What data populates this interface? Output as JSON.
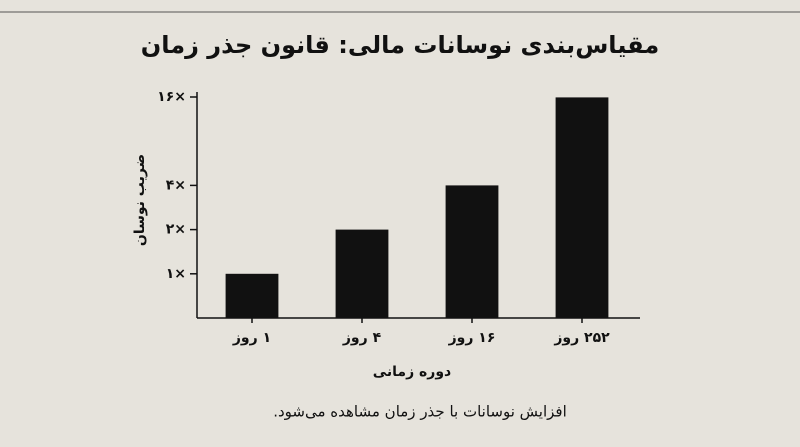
{
  "chart_data": {
    "type": "bar",
    "title": "مقیاس‌بندی نوسانات مالی: قانون جذر زمان",
    "x_label": "دوره زمانی",
    "y_label": "ضریب نوسان",
    "caption": "افزایش نوسانات با جذر زمان مشاهده می‌شود.",
    "categories": [
      "۱ روز",
      "۴ روز",
      "۱۶ روز",
      "۲۵۲ روز"
    ],
    "values": [
      1,
      2,
      4,
      15.9
    ],
    "color": "#111111",
    "scale": "log",
    "ylim": [
      0.5,
      16
    ],
    "yticks": [
      {
        "value": 1,
        "label": "۱×"
      },
      {
        "value": 2,
        "label": "۲×"
      },
      {
        "value": 4,
        "label": "۴×"
      },
      {
        "value": 16,
        "label": "۱۶×"
      }
    ],
    "grid": false
  }
}
